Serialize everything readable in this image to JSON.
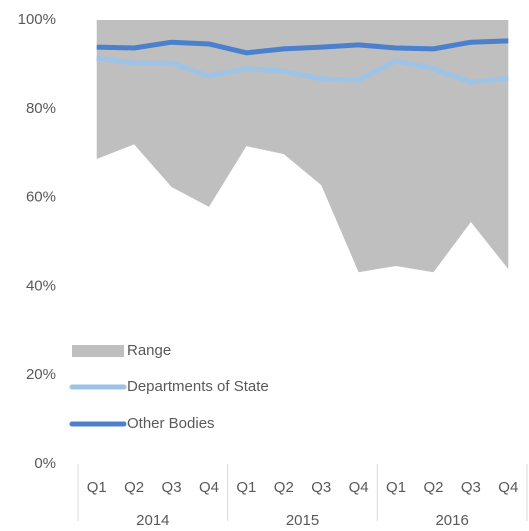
{
  "chart_data": {
    "type": "line",
    "categories": [
      "Q1",
      "Q2",
      "Q3",
      "Q4",
      "Q1",
      "Q2",
      "Q3",
      "Q4",
      "Q1",
      "Q2",
      "Q3",
      "Q4"
    ],
    "groups": [
      "2014",
      "2015",
      "2016"
    ],
    "range": {
      "name": "Range",
      "color": "#bfbfbf",
      "high": [
        100,
        100,
        100,
        100,
        100,
        100,
        100,
        100,
        100,
        100,
        100,
        100
      ],
      "low": [
        68.7,
        72,
        62.4,
        57.9,
        71.6,
        69.8,
        62.8,
        43.2,
        44.6,
        43.2,
        54.5,
        43.9
      ]
    },
    "series": [
      {
        "name": "Departments of State",
        "color": "#9dc3e6",
        "values": [
          91.4,
          90.3,
          90.3,
          87.4,
          89,
          88.5,
          86.7,
          86.5,
          90.8,
          89,
          86,
          86.9
        ]
      },
      {
        "name": "Other Bodies",
        "color": "#4a80cc",
        "values": [
          93.9,
          93.7,
          95,
          94.6,
          92.6,
          93.5,
          93.9,
          94.4,
          93.7,
          93.5,
          95,
          95.3
        ]
      }
    ],
    "ylim": [
      0,
      100
    ],
    "yticks": [
      {
        "value": 0,
        "label": "0%"
      },
      {
        "value": 20,
        "label": "20%"
      },
      {
        "value": 40,
        "label": "40%"
      },
      {
        "value": 60,
        "label": "60%"
      },
      {
        "value": 80,
        "label": "80%"
      },
      {
        "value": 100,
        "label": "100%"
      }
    ],
    "legend": "lower-left"
  }
}
